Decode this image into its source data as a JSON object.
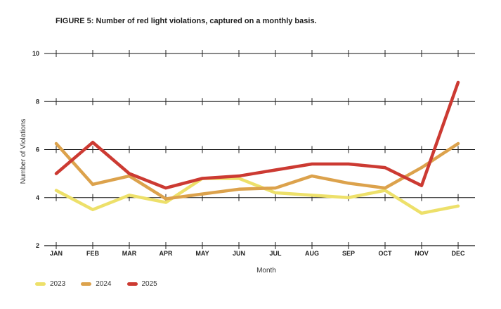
{
  "figure": {
    "label": "FIGURE 5:",
    "caption": "Number of red light violations, captured on a monthly basis."
  },
  "chart_data": {
    "type": "line",
    "title": "FIGURE 5: Number of red light violations, captured on a monthly basis.",
    "xlabel": "Month",
    "ylabel": "Number of Violations",
    "categories": [
      "JAN",
      "FEB",
      "MAR",
      "APR",
      "MAY",
      "JUN",
      "JUL",
      "AUG",
      "SEP",
      "OCT",
      "NOV",
      "DEC"
    ],
    "ylim": [
      2,
      10
    ],
    "yticks": [
      2,
      4,
      6,
      8,
      10
    ],
    "grid": "horizontal",
    "legend_position": "bottom-left",
    "series": [
      {
        "name": "2023",
        "color": "#ede06a",
        "values": [
          4.3,
          3.5,
          4.1,
          3.8,
          4.8,
          4.8,
          4.2,
          4.1,
          4.0,
          4.3,
          3.35,
          3.65
        ]
      },
      {
        "name": "2024",
        "color": "#dca24c",
        "values": [
          6.25,
          4.55,
          4.9,
          3.95,
          4.15,
          4.35,
          4.4,
          4.9,
          4.6,
          4.4,
          5.25,
          6.25
        ]
      },
      {
        "name": "2025",
        "color": "#cc3a32",
        "values": [
          5.0,
          6.3,
          5.0,
          4.4,
          4.8,
          4.9,
          5.15,
          5.4,
          5.4,
          5.25,
          4.5,
          8.8
        ]
      }
    ]
  }
}
